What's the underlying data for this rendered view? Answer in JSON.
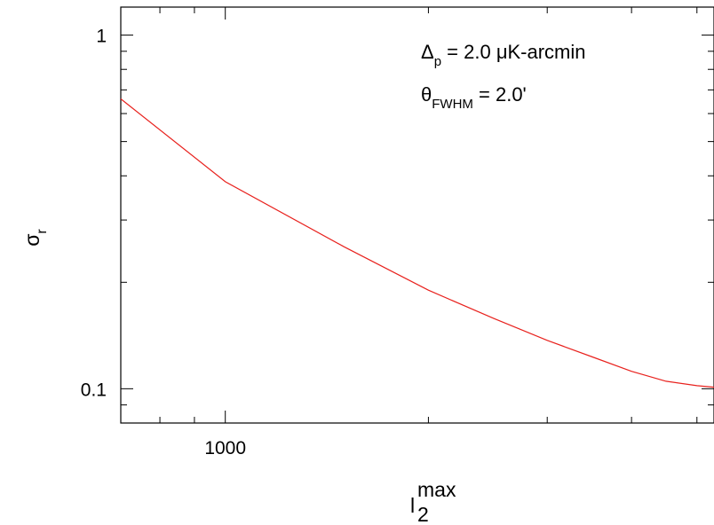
{
  "chart_data": {
    "type": "line",
    "x_scale": "log",
    "y_scale": "log",
    "xlim": [
      700,
      5300
    ],
    "ylim": [
      0.08,
      1.2
    ],
    "xlabel": {
      "base": "l",
      "sub": "2",
      "sup": "max"
    },
    "ylabel": {
      "base": "σ",
      "sub": "r"
    },
    "x_major_ticks": [
      {
        "value": 1000,
        "label": "1000"
      }
    ],
    "y_major_ticks": [
      {
        "value": 0.1,
        "label": "0.1"
      },
      {
        "value": 1,
        "label": "1"
      }
    ],
    "annotations": [
      {
        "base": "Δ",
        "sub": "p",
        "rest": " = 2.0 μK-arcmin"
      },
      {
        "base": "θ",
        "sub": "FWHM",
        "rest": " = 2.0'"
      }
    ],
    "series": [
      {
        "color": "#e8211d",
        "x": [
          700,
          1000,
          1500,
          2000,
          2500,
          3000,
          3500,
          4000,
          4500,
          5000,
          5300
        ],
        "y": [
          0.66,
          0.385,
          0.252,
          0.19,
          0.158,
          0.137,
          0.123,
          0.112,
          0.105,
          0.102,
          0.101
        ]
      }
    ],
    "grid": false,
    "legend": "none"
  }
}
